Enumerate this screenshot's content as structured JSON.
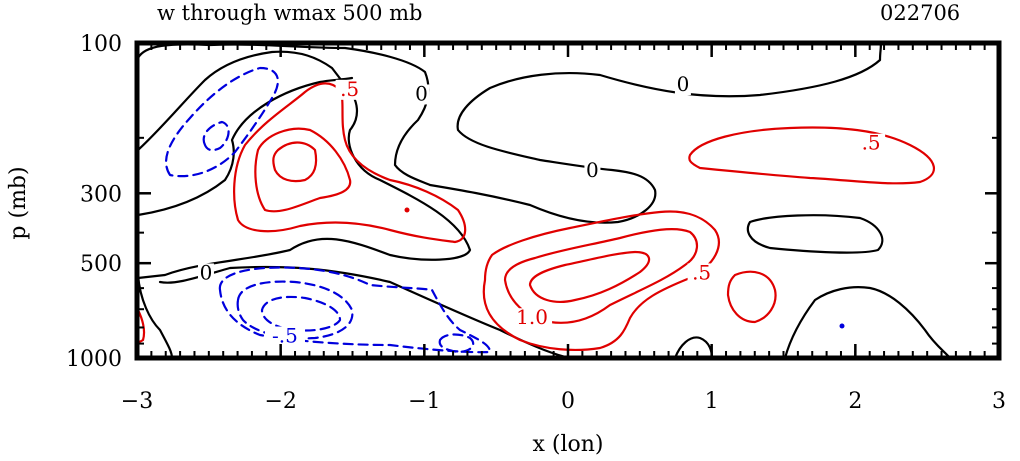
{
  "chart_data": {
    "type": "contour",
    "title": "w through wmax 500 mb",
    "id_label": "022706",
    "xlabel": "x (lon)",
    "ylabel": "p (mb)",
    "xlim": [
      -3,
      3
    ],
    "x_ticks": [
      -3,
      -2,
      -1,
      0,
      1,
      2,
      3
    ],
    "x_tick_labels": [
      "−3",
      "−2",
      "−1",
      "0",
      "1",
      "2",
      "3"
    ],
    "y_scale": "log",
    "ylim": [
      1000,
      100
    ],
    "y_ticks": [
      100,
      300,
      500,
      1000
    ],
    "y_tick_labels": [
      "100",
      "300",
      "500",
      "1000"
    ],
    "colors": {
      "positive": "#e00000",
      "zero": "#000000",
      "negative": "#0000dd"
    },
    "contour_labels": [
      {
        "text": ".5",
        "x": -1.52,
        "p": 145,
        "kind": "positive"
      },
      {
        "text": "0",
        "x": -1.02,
        "p": 150,
        "kind": "zero"
      },
      {
        "text": "0",
        "x": 0.8,
        "p": 140,
        "kind": "zero"
      },
      {
        "text": "0",
        "x": 0.17,
        "p": 262,
        "kind": "zero"
      },
      {
        "text": ".5",
        "x": 2.11,
        "p": 215,
        "kind": "positive"
      },
      {
        "text": "0",
        "x": -2.52,
        "p": 555,
        "kind": "zero"
      },
      {
        "text": ".5",
        "x": 0.93,
        "p": 555,
        "kind": "positive"
      },
      {
        "text": "1.0",
        "x": -0.25,
        "p": 770,
        "kind": "positive"
      },
      {
        "text": "-.5",
        "x": -1.97,
        "p": 880,
        "kind": "negative"
      }
    ]
  }
}
